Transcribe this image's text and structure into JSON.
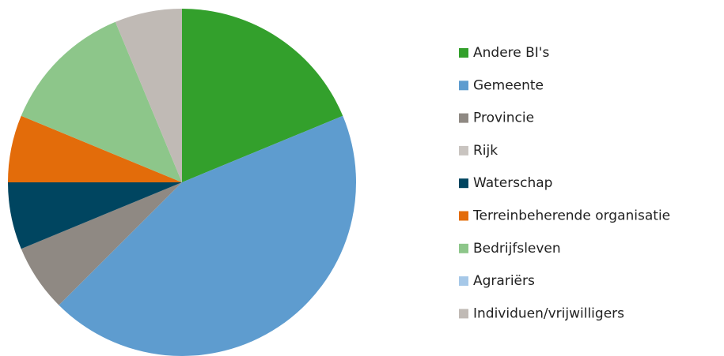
{
  "chart_data": {
    "type": "pie",
    "categories": [
      "Andere BI's",
      "Gemeente",
      "Provincie",
      "Rijk",
      "Waterschap",
      "Terreinbeherende organisatie",
      "Bedrijfsleven",
      "Agrariërs",
      "Individuen/vrijwilligers"
    ],
    "values": [
      18.75,
      43.75,
      6.25,
      0,
      6.25,
      6.25,
      12.5,
      0,
      6.25
    ],
    "colors": [
      "#33a02c",
      "#5e9ccf",
      "#8f8983",
      "#c9c4c0",
      "#004560",
      "#e36c0a",
      "#8dc68a",
      "#a6c8e8",
      "#c0bab5"
    ],
    "legend": "right"
  }
}
